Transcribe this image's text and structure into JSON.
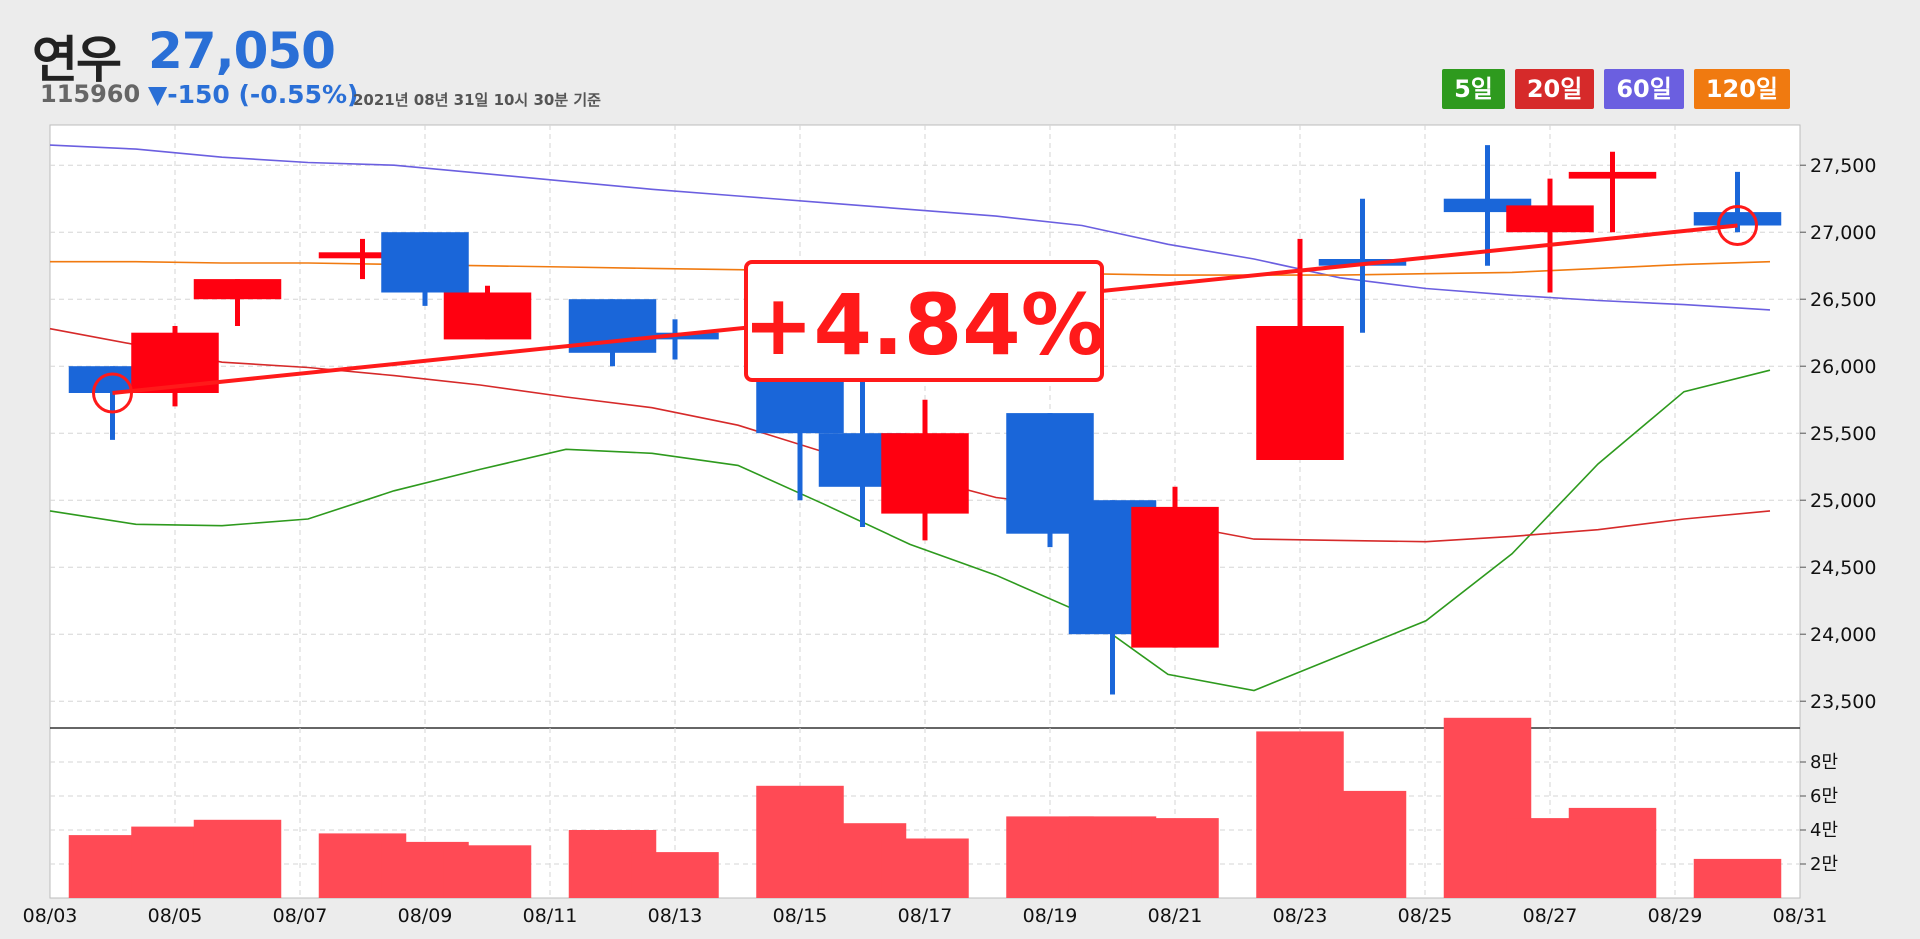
{
  "stock": {
    "name": "연우",
    "code": "115960",
    "price": "27,050",
    "change": "▼-150 (-0.55%)",
    "timestamp": "2021년 08년 31일 10시 30분 기준"
  },
  "legend": [
    {
      "label": "5일",
      "color": "#2e9a1e"
    },
    {
      "label": "20일",
      "color": "#d62a2a"
    },
    {
      "label": "60일",
      "color": "#6b5fe0"
    },
    {
      "label": "120일",
      "color": "#f07a10"
    }
  ],
  "badge": "+4.84%",
  "colors": {
    "up": "#ff0010",
    "down": "#1a66d9",
    "volume": "#ff4a55",
    "trend": "#ff1a1a"
  },
  "chart_data": {
    "type": "candlestick",
    "x_ticks": [
      "08/03",
      "08/05",
      "08/07",
      "08/09",
      "08/11",
      "08/13",
      "08/15",
      "08/17",
      "08/19",
      "08/21",
      "08/23",
      "08/25",
      "08/27",
      "08/29",
      "08/31"
    ],
    "price_ticks": [
      "23,500",
      "24,000",
      "24,500",
      "25,000",
      "25,500",
      "26,000",
      "26,500",
      "27,000",
      "27,500"
    ],
    "price_range": [
      23300,
      27800
    ],
    "volume_ticks": [
      "2만",
      "4만",
      "6만",
      "8만"
    ],
    "volume_range": [
      0,
      100000
    ],
    "candles": [
      {
        "date": "08/04",
        "open": 26000,
        "high": 26000,
        "low": 25450,
        "close": 25800,
        "dir": "down",
        "volume": 37000
      },
      {
        "date": "08/05",
        "open": 25800,
        "high": 26300,
        "low": 25700,
        "close": 26250,
        "dir": "up",
        "volume": 42000
      },
      {
        "date": "08/06",
        "open": 26500,
        "high": 26650,
        "low": 26300,
        "close": 26650,
        "dir": "up",
        "volume": 46000
      },
      {
        "date": "08/08",
        "open": 26820,
        "high": 26950,
        "low": 26650,
        "close": 26850,
        "dir": "up",
        "volume": 38000
      },
      {
        "date": "08/09",
        "open": 27000,
        "high": 27000,
        "low": 26450,
        "close": 26550,
        "dir": "down",
        "volume": 33000
      },
      {
        "date": "08/10",
        "open": 26200,
        "high": 26600,
        "low": 26200,
        "close": 26550,
        "dir": "up",
        "volume": 31000
      },
      {
        "date": "08/12",
        "open": 26500,
        "high": 26500,
        "low": 26000,
        "close": 26100,
        "dir": "down",
        "volume": 40000
      },
      {
        "date": "08/13",
        "open": 26250,
        "high": 26350,
        "low": 26050,
        "close": 26200,
        "dir": "down",
        "volume": 27000
      },
      {
        "date": "08/15",
        "open": 26050,
        "high": 26150,
        "low": 25000,
        "close": 25500,
        "dir": "down",
        "volume": 66000
      },
      {
        "date": "08/16",
        "open": 25500,
        "high": 25900,
        "low": 24800,
        "close": 25100,
        "dir": "down",
        "volume": 44000
      },
      {
        "date": "08/17",
        "open": 24900,
        "high": 25750,
        "low": 24700,
        "close": 25500,
        "dir": "up",
        "volume": 35000
      },
      {
        "date": "08/19",
        "open": 25650,
        "high": 25650,
        "low": 24650,
        "close": 24750,
        "dir": "down",
        "volume": 48000
      },
      {
        "date": "08/20",
        "open": 25000,
        "high": 25000,
        "low": 23550,
        "close": 24000,
        "dir": "down",
        "volume": 48000
      },
      {
        "date": "08/21",
        "open": 23900,
        "high": 25100,
        "low": 23900,
        "close": 24950,
        "dir": "up",
        "volume": 47000
      },
      {
        "date": "08/23",
        "open": 25300,
        "high": 26950,
        "low": 25300,
        "close": 26300,
        "dir": "up",
        "volume": 98000
      },
      {
        "date": "08/24",
        "open": 26800,
        "high": 27250,
        "low": 26250,
        "close": 26750,
        "dir": "down",
        "volume": 63000
      },
      {
        "date": "08/26",
        "open": 27250,
        "high": 27650,
        "low": 26750,
        "close": 27150,
        "dir": "down",
        "volume": 106000
      },
      {
        "date": "08/27",
        "open": 27000,
        "high": 27400,
        "low": 26550,
        "close": 27200,
        "dir": "up",
        "volume": 47000
      },
      {
        "date": "08/28",
        "open": 27400,
        "high": 27600,
        "low": 27000,
        "close": 27450,
        "dir": "up",
        "volume": 53000
      },
      {
        "date": "08/30",
        "open": 27150,
        "high": 27450,
        "low": 27000,
        "close": 27050,
        "dir": "down",
        "volume": 23000
      }
    ],
    "moving_averages": [
      {
        "name": "5일",
        "color": "#2e9a1e",
        "values": [
          24920,
          24820,
          24810,
          24860,
          25070,
          25230,
          25380,
          25350,
          25260,
          24970,
          24670,
          24440,
          24160,
          23700,
          23580,
          23840,
          24100,
          24600,
          25270,
          25810,
          25970
        ]
      },
      {
        "name": "20일",
        "color": "#d62a2a",
        "values": [
          26280,
          26160,
          26030,
          25990,
          25930,
          25860,
          25770,
          25690,
          25560,
          25360,
          25190,
          25020,
          24940,
          24830,
          24710,
          24700,
          24690,
          24730,
          24780,
          24860,
          24920
        ]
      },
      {
        "name": "60일",
        "color": "#6b5fe0",
        "values": [
          27650,
          27620,
          27560,
          27520,
          27500,
          27440,
          27380,
          27320,
          27270,
          27220,
          27170,
          27120,
          27050,
          26910,
          26800,
          26660,
          26580,
          26530,
          26490,
          26460,
          26420
        ]
      },
      {
        "name": "120일",
        "color": "#f07a10",
        "values": [
          26780,
          26780,
          26770,
          26770,
          26760,
          26750,
          26740,
          26730,
          26720,
          26710,
          26700,
          26690,
          26690,
          26680,
          26680,
          26680,
          26690,
          26700,
          26730,
          26760,
          26780
        ]
      }
    ],
    "trend_line": {
      "from_index": 0,
      "from_price": 25800,
      "to_index": 19,
      "to_price": 27050
    }
  }
}
